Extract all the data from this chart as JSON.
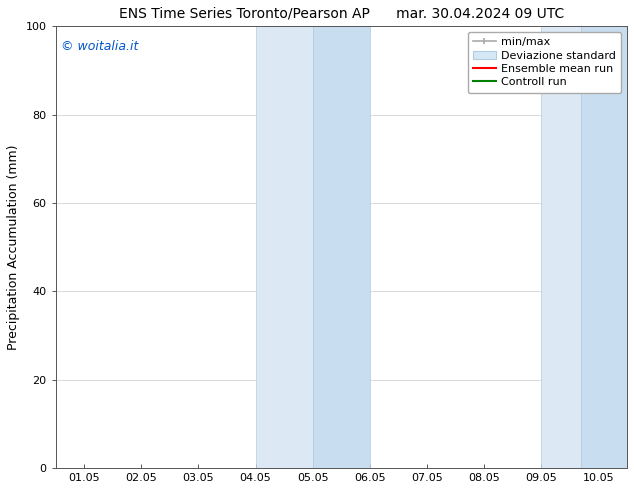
{
  "title_left": "ENS Time Series Toronto/Pearson AP",
  "title_right": "mar. 30.04.2024 09 UTC",
  "xlabel": "",
  "ylabel": "Precipitation Accumulation (mm)",
  "ylim": [
    0,
    100
  ],
  "xtick_positions": [
    0,
    1,
    2,
    3,
    4,
    5,
    6,
    7,
    8,
    9
  ],
  "xtick_labels": [
    "01.05",
    "02.05",
    "03.05",
    "04.05",
    "05.05",
    "06.05",
    "07.05",
    "08.05",
    "09.05",
    "10.05"
  ],
  "ytick_values": [
    0,
    20,
    40,
    60,
    80,
    100
  ],
  "xlim": [
    -0.5,
    9.5
  ],
  "shaded_regions": [
    [
      3.0,
      4.0
    ],
    [
      4.0,
      5.0
    ],
    [
      8.0,
      8.7
    ],
    [
      8.7,
      9.5
    ]
  ],
  "shaded_colors": [
    "#dce9f5",
    "#c8ddef",
    "#dce9f5",
    "#c8ddef"
  ],
  "shaded_edge_color": "#b0cde0",
  "watermark_text": "© woitalia.it",
  "watermark_color": "#0055cc",
  "legend_entries": [
    {
      "label": "min/max",
      "color": "#aaaaaa"
    },
    {
      "label": "Deviazione standard",
      "color": "#d5e8f5"
    },
    {
      "label": "Ensemble mean run",
      "color": "red"
    },
    {
      "label": "Controll run",
      "color": "green"
    }
  ],
  "background_color": "#ffffff",
  "font_size_title": 10,
  "font_size_axis": 9,
  "font_size_ticks": 8,
  "font_size_legend": 8,
  "font_size_watermark": 9
}
